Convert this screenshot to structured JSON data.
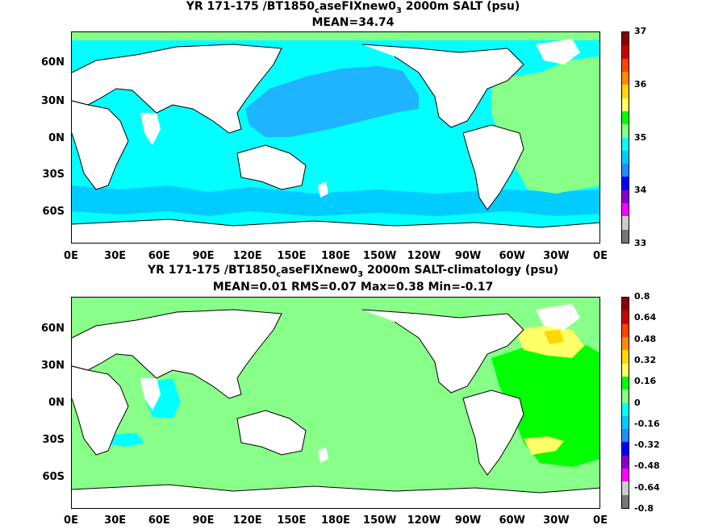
{
  "panel1": {
    "title_line1_prefix": "YR 171-175 /BT1850",
    "title_sub_c": "c",
    "title_mid": "aseFIXnew0",
    "title_sub_3": "3",
    "title_suffix": " 2000m SALT (psu)",
    "title_line2": "MEAN=34.74",
    "colorbar_labels": [
      "37",
      "36",
      "35",
      "34",
      "33"
    ],
    "colorbar_colors": [
      "#8b0000",
      "#cc0000",
      "#ff4400",
      "#ff8c00",
      "#ffd700",
      "#ffff66",
      "#00ff00",
      "#88ff88",
      "#00ffff",
      "#00ccff",
      "#1e90ff",
      "#0000ff",
      "#8800cc",
      "#ff00ff",
      "#cccccc",
      "#777777"
    ]
  },
  "panel2": {
    "title_line1_prefix": "YR 171-175 /BT1850",
    "title_sub_c": "c",
    "title_mid": "aseFIXnew0",
    "title_sub_3": "3",
    "title_suffix": " 2000m SALT-climatology (psu)",
    "title_line2": "MEAN=0.01   RMS=0.07   Max=0.38   Min=-0.17",
    "colorbar_labels": [
      "0.8",
      "0.64",
      "0.48",
      "0.32",
      "0.16",
      "0",
      "-0.16",
      "-0.32",
      "-0.48",
      "-0.64",
      "-0.8"
    ],
    "colorbar_colors": [
      "#8b0000",
      "#cc0000",
      "#ff4400",
      "#ff8c00",
      "#ffd700",
      "#ffff66",
      "#00ff00",
      "#88ff88",
      "#00ffff",
      "#00ccff",
      "#1e90ff",
      "#0000ff",
      "#8800cc",
      "#ff00ff",
      "#cccccc",
      "#777777"
    ]
  },
  "lat_labels": [
    "60N",
    "30N",
    "0N",
    "30S",
    "60S"
  ],
  "lon_labels": [
    "0E",
    "30E",
    "60E",
    "90E",
    "120E",
    "150E",
    "180E",
    "150W",
    "120W",
    "90W",
    "60W",
    "30W",
    "0E"
  ],
  "colors": {
    "land": "#ffffff",
    "coast": "#000000",
    "p1_ocean": "#00ffff",
    "p1_pacific": "#1eb4ff",
    "p1_atlantic": "#88ff88",
    "p1_fresh": "#00ccff",
    "p2_base": "#88ff88",
    "p2_cyan": "#00ffff",
    "p2_green": "#00ff00",
    "p2_yellow": "#ffff66",
    "p2_gold": "#ffd700"
  }
}
